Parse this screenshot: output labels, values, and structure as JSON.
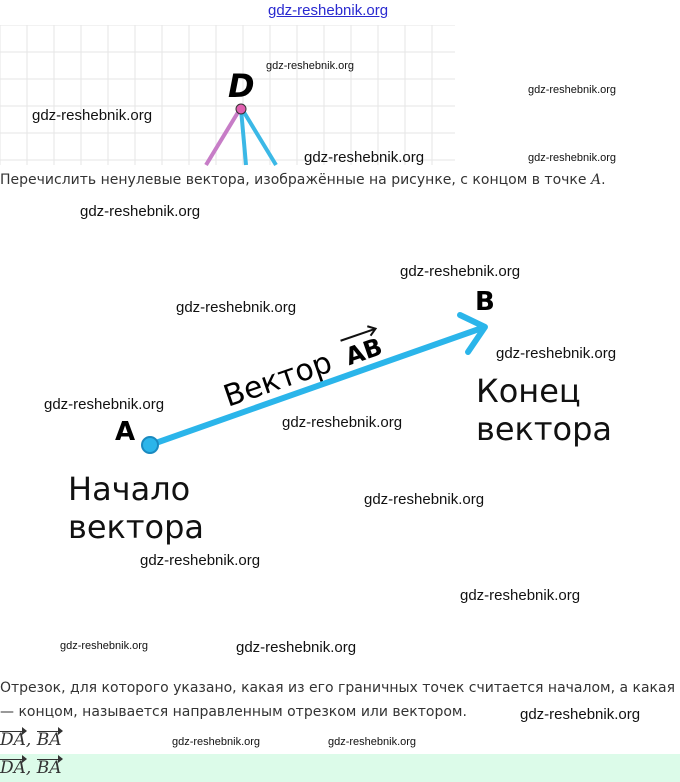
{
  "watermark": "gdz-reshebnik.org",
  "question": "Перечислить ненулевые вектора, изображённые на рисунке, с концом в точке",
  "question_point": "A",
  "figure_top": {
    "point_label": "D",
    "point_color": "#e060b0",
    "line_colors": [
      "#c77dc7",
      "#3bb8e6"
    ]
  },
  "figure_main": {
    "start_label": "A",
    "end_label": "B",
    "vector_label": "Вектор",
    "vector_name": "AB",
    "start_caption_1": "Начало",
    "start_caption_2": "вектора",
    "end_caption_1": "Конец",
    "end_caption_2": "вектора",
    "arrow_color": "#2bb5ea"
  },
  "definition_1": "Отрезок, для которого указано, какая из его граничных точек считается началом, а какая",
  "definition_2": "— концом, называется направленным отрезком или вектором.",
  "answer": {
    "v1": "DA",
    "v2": "BA",
    "sep": ", "
  },
  "answer_highlight_color": "#dcfbe9"
}
